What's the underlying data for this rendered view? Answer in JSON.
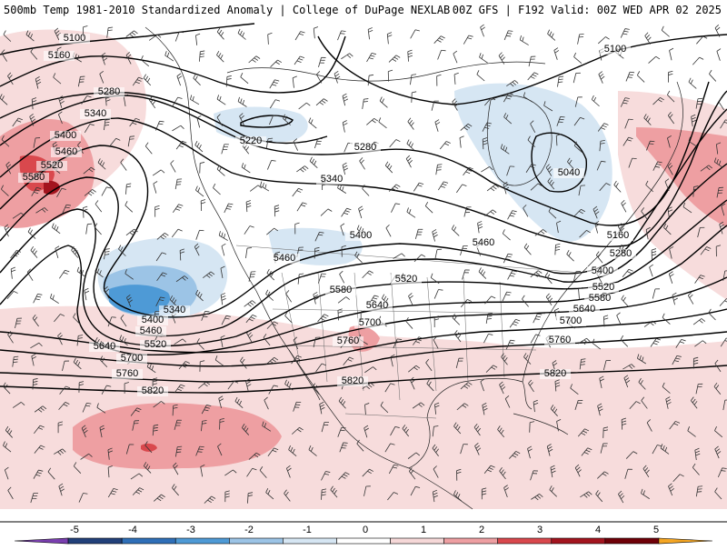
{
  "header": {
    "title": "500mb Temp 1981-2010 Standardized Anomaly | College of DuPage NEXLAB",
    "run": "00Z GFS | F192 Valid: 00Z WED APR 02 2025"
  },
  "colorbar": {
    "ticks": [
      "-5",
      "-4",
      "-3",
      "-2",
      "-1",
      "0",
      "1",
      "2",
      "3",
      "4",
      "5"
    ],
    "colors": [
      "#7a3fb0",
      "#22407a",
      "#2f6fb8",
      "#4e9ad6",
      "#9cc4e6",
      "#d6e6f3",
      "#ffffff",
      "#f6d8d8",
      "#ee9fa2",
      "#d9484d",
      "#a3141e",
      "#6f0008",
      "#f5a623"
    ]
  },
  "contour_labels": [
    {
      "id": "5100-nw",
      "text": "5100"
    },
    {
      "id": "5160-nw",
      "text": "5160"
    },
    {
      "id": "5280-nw",
      "text": "5280"
    },
    {
      "id": "5340-nw",
      "text": "5340"
    },
    {
      "id": "5400-nw",
      "text": "5400"
    },
    {
      "id": "5460-nw",
      "text": "5460"
    },
    {
      "id": "5520-nw",
      "text": "5520"
    },
    {
      "id": "5580-nw",
      "text": "5580"
    },
    {
      "id": "5220-ak",
      "text": "5220"
    },
    {
      "id": "5280-ca",
      "text": "5280"
    },
    {
      "id": "5340-ca",
      "text": "5340"
    },
    {
      "id": "5100-ne",
      "text": "5100"
    },
    {
      "id": "5040-hb",
      "text": "5040"
    },
    {
      "id": "5400-us",
      "text": "5400"
    },
    {
      "id": "5460-us",
      "text": "5460"
    },
    {
      "id": "5460-gl",
      "text": "5460"
    },
    {
      "id": "5520-us",
      "text": "5520"
    },
    {
      "id": "5580-us",
      "text": "5580"
    },
    {
      "id": "5640-us",
      "text": "5640"
    },
    {
      "id": "5700-us",
      "text": "5700"
    },
    {
      "id": "5760-sw",
      "text": "5760"
    },
    {
      "id": "5820-mx",
      "text": "5820"
    },
    {
      "id": "5340-low",
      "text": "5340"
    },
    {
      "id": "5400-low",
      "text": "5400"
    },
    {
      "id": "5460-low",
      "text": "5460"
    },
    {
      "id": "5520-low",
      "text": "5520"
    },
    {
      "id": "5640-pac",
      "text": "5640"
    },
    {
      "id": "5700-pac",
      "text": "5700"
    },
    {
      "id": "5760-pac",
      "text": "5760"
    },
    {
      "id": "5820-pac",
      "text": "5820"
    },
    {
      "id": "5160-e",
      "text": "5160"
    },
    {
      "id": "5280-e",
      "text": "5280"
    },
    {
      "id": "5400-e",
      "text": "5400"
    },
    {
      "id": "5520-e",
      "text": "5520"
    },
    {
      "id": "5580-e",
      "text": "5580"
    },
    {
      "id": "5640-e",
      "text": "5640"
    },
    {
      "id": "5700-e",
      "text": "5700"
    },
    {
      "id": "5760-e",
      "text": "5760"
    },
    {
      "id": "5820-e",
      "text": "5820"
    }
  ]
}
